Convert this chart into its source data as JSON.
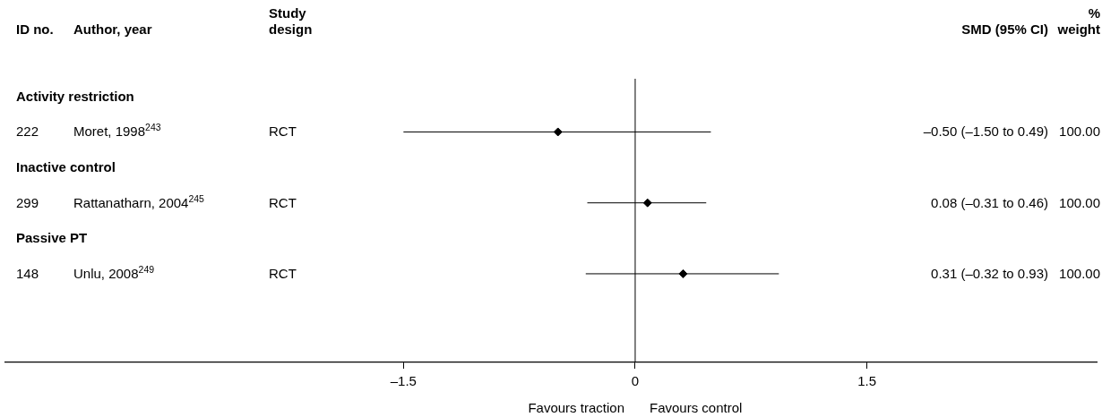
{
  "chart_data": {
    "type": "scatter",
    "orientation": "horizontal",
    "categories": [
      "Activity restriction",
      "Moret, 1998$^{243}$",
      "Inactive control",
      "Rattanatharn, 2004$^{245}$",
      "Passive PT",
      "Unlu, 2008$^{249}$"
    ],
    "values": [
      null,
      -0.5,
      null,
      0.08,
      null,
      0.31
    ],
    "errors": [
      null,
      [
        -1.5,
        0.49
      ],
      null,
      [
        -0.31,
        0.46
      ],
      null,
      [
        -0.32,
        0.93
      ]
    ],
    "color": "#000000",
    "marker": "diamond",
    "xlim": [
      -4.08,
      2.99
    ],
    "xticks": [
      {
        "value": -1.5,
        "label": "–1.5"
      },
      0,
      1.5
    ],
    "ref_lines": [
      {
        "axis": "x",
        "value": 0
      }
    ],
    "annotations": [
      "ID no.",
      "Author, year",
      "Study design",
      "SMD (95% CI)",
      "% weight",
      "222",
      "RCT",
      "–0.50 (–1.50 to 0.49)",
      "100.00",
      "299",
      "RCT",
      "0.08 (–0.31 to 0.46)",
      "100.00",
      "148",
      "RCT",
      "0.31 (–0.32 to 0.93)",
      "100.00",
      "Favours traction",
      "Favours control"
    ],
    "legend": false,
    "grid": false
  }
}
